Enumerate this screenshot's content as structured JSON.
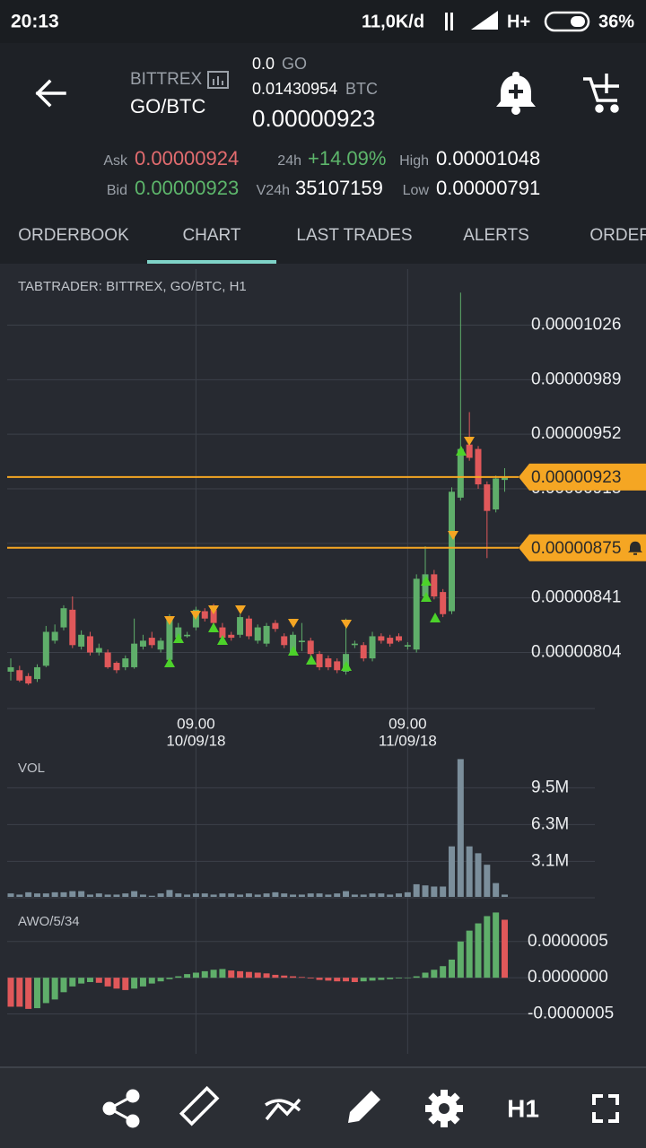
{
  "status_bar": {
    "time": "20:13",
    "speed": "11,0K/d",
    "network": "H+",
    "battery": "36%"
  },
  "header": {
    "exchange": "BITTREX",
    "pair": "GO/BTC",
    "holding_amount": "0.0",
    "holding_unit": "GO",
    "btc_value": "0.01430954",
    "btc_unit": "BTC",
    "last_price": "0.00000923",
    "ask_label": "Ask",
    "ask": "0.00000924",
    "bid_label": "Bid",
    "bid": "0.00000923",
    "change_label": "24h",
    "change": "+14.09%",
    "volume_label": "V24h",
    "volume": "35107159",
    "high_label": "High",
    "high": "0.00001048",
    "low_label": "Low",
    "low": "0.00000791"
  },
  "tabs": [
    "ORDERBOOK",
    "CHART",
    "LAST TRADES",
    "ALERTS",
    "ORDERS"
  ],
  "active_tab": 1,
  "chart": {
    "type": "candlestick",
    "title": "TABTRADER: BITTREX, GO/BTC, H1",
    "up_color": "#5fae6a",
    "down_color": "#e0585a",
    "categories": [
      null,
      null,
      null,
      null,
      null,
      null,
      null,
      null,
      null,
      null,
      null,
      null,
      null,
      null,
      null,
      null,
      null,
      null,
      null,
      null,
      null,
      {
        "time": "09.00",
        "date": "10/09/18"
      },
      null,
      null,
      null,
      null,
      null,
      null,
      null,
      null,
      null,
      null,
      null,
      null,
      null,
      null,
      null,
      null,
      null,
      null,
      null,
      null,
      null,
      null,
      null,
      {
        "time": "09.00",
        "date": "11/09/18"
      },
      null,
      null,
      null,
      null,
      null,
      null,
      null,
      null,
      null,
      null,
      null
    ],
    "open": [
      7.91e-06,
      7.92e-06,
      7.88e-06,
      7.86e-06,
      7.95e-06,
      8.12e-06,
      8.21e-06,
      8.33e-06,
      8.08e-06,
      8.15e-06,
      8.04e-06,
      8.04e-06,
      7.97e-06,
      7.94e-06,
      7.94e-06,
      8.08e-06,
      8.14e-06,
      8.06e-06,
      7.99e-06,
      8.14e-06,
      8.15e-06,
      8.21e-06,
      8.32e-06,
      8.33e-06,
      8.21e-06,
      8.16e-06,
      8.16e-06,
      8.27e-06,
      8.12e-06,
      8.1e-06,
      8.24e-06,
      8.15e-06,
      8.04e-06,
      8.11e-06,
      8.12e-06,
      8.03e-06,
      8e-06,
      7.98e-06,
      7.91e-06,
      8.09e-06,
      8.09e-06,
      8e-06,
      8.15e-06,
      8.14e-06,
      8.15e-06,
      8.08e-06,
      8.06e-06,
      8.42e-06,
      8.57e-06,
      8.45e-06,
      8.32e-06,
      9.09e-06,
      9.45e-06,
      9.42e-06,
      9.18e-06,
      9.01e-06,
      9.21e-06
    ],
    "high": [
      8e-06,
      7.95e-06,
      7.9e-06,
      7.96e-06,
      8.22e-06,
      8.23e-06,
      8.36e-06,
      8.42e-06,
      8.19e-06,
      8.18e-06,
      8.1e-06,
      8.06e-06,
      7.98e-06,
      8.02e-06,
      8.27e-06,
      8.16e-06,
      8.18e-06,
      8.14e-06,
      8.3e-06,
      8.24e-06,
      8.18e-06,
      8.35e-06,
      8.34e-06,
      8.37e-06,
      8.24e-06,
      8.18e-06,
      8.3e-06,
      8.29e-06,
      8.23e-06,
      8.24e-06,
      8.26e-06,
      8.17e-06,
      8.18e-06,
      8.24e-06,
      8.14e-06,
      8.05e-06,
      8.02e-06,
      8e-06,
      8.27e-06,
      8.12e-06,
      8.11e-06,
      8.18e-06,
      8.17e-06,
      8.16e-06,
      8.17e-06,
      8.11e-06,
      8.57e-06,
      8.76e-06,
      8.6e-06,
      8.47e-06,
      9.16e-06,
      1.048e-05,
      9.67e-06,
      9.44e-06,
      9.2e-06,
      9.24e-06,
      9.29e-06
    ],
    "low": [
      7.85e-06,
      7.84e-06,
      7.82e-06,
      7.84e-06,
      7.94e-06,
      8.1e-06,
      8.19e-06,
      8.07e-06,
      8.06e-06,
      8.02e-06,
      8.02e-06,
      7.93e-06,
      7.9e-06,
      7.92e-06,
      7.93e-06,
      8.06e-06,
      8.07e-06,
      8.04e-06,
      7.97e-06,
      8.12e-06,
      8.14e-06,
      8.19e-06,
      8.25e-06,
      8.22e-06,
      8.12e-06,
      8.12e-06,
      8.14e-06,
      8.13e-06,
      8.1e-06,
      8.08e-06,
      8.18e-06,
      8.07e-06,
      8.02e-06,
      8.05e-06,
      8.01e-06,
      7.92e-06,
      7.92e-06,
      7.9e-06,
      7.89e-06,
      8.07e-06,
      7.98e-06,
      7.98e-06,
      8.1e-06,
      8.08e-06,
      8.11e-06,
      8.06e-06,
      8.04e-06,
      8.4e-06,
      8.4e-06,
      8.28e-06,
      8.3e-06,
      9.07e-06,
      9.34e-06,
      9.15e-06,
      8.68e-06,
      8.99e-06,
      9.13e-06
    ],
    "close": [
      7.94e-06,
      7.85e-06,
      7.83e-06,
      7.94e-06,
      8.18e-06,
      8.18e-06,
      8.34e-06,
      8.09e-06,
      8.16e-06,
      8.04e-06,
      8.07e-06,
      7.94e-06,
      7.92e-06,
      8e-06,
      8.1e-06,
      8.12e-06,
      8.09e-06,
      8.12e-06,
      8.27e-06,
      8.21e-06,
      8.16e-06,
      8.33e-06,
      8.27e-06,
      8.24e-06,
      8.14e-06,
      8.14e-06,
      8.28e-06,
      8.15e-06,
      8.21e-06,
      8.22e-06,
      8.2e-06,
      8.09e-06,
      8.16e-06,
      8.12e-06,
      8.03e-06,
      7.94e-06,
      7.94e-06,
      7.92e-06,
      8.03e-06,
      8.1e-06,
      8e-06,
      8.15e-06,
      8.12e-06,
      8.1e-06,
      8.12e-06,
      8.09e-06,
      8.54e-06,
      8.57e-06,
      8.42e-06,
      8.3e-06,
      9.13e-06,
      9.42e-06,
      9.36e-06,
      9.18e-06,
      9e-06,
      9.22e-06,
      9.23e-06
    ],
    "ylim": [
      7.66e-06,
      1.064e-05
    ],
    "yticks": [
      1.026e-05,
      9.89e-06,
      9.52e-06,
      9.15e-06,
      8.78e-06,
      8.41e-06,
      8.04e-06
    ],
    "price_lines": [
      {
        "value": 9.23e-06,
        "color": "#f5a623",
        "alert": false
      },
      {
        "value": 8.75e-06,
        "color": "#f5a623",
        "alert": true
      }
    ]
  },
  "volume": {
    "type": "bar",
    "title": "VOL",
    "color": "#7b8e9b",
    "values": [
      300000,
      200000,
      400000,
      300000,
      300000,
      400000,
      400000,
      500000,
      500000,
      200000,
      300000,
      200000,
      200000,
      300000,
      500000,
      200000,
      100000,
      300000,
      600000,
      300000,
      200000,
      300000,
      300000,
      200000,
      300000,
      300000,
      200000,
      300000,
      200000,
      300000,
      400000,
      300000,
      200000,
      200000,
      300000,
      300000,
      200000,
      300000,
      500000,
      200000,
      200000,
      300000,
      300000,
      200000,
      300000,
      400000,
      1100000,
      1000000,
      900000,
      900000,
      4400000,
      12000000,
      4400000,
      3800000,
      2800000,
      1200000,
      200000
    ],
    "ylim": [
      0,
      12500000
    ],
    "yticks": [
      {
        "value": 9500000,
        "label": "9.5M"
      },
      {
        "value": 6300000,
        "label": "6.3M"
      },
      {
        "value": 3100000,
        "label": "3.1M"
      }
    ]
  },
  "oscillator": {
    "type": "bar",
    "title": "AWO/5/34",
    "up_color": "#5fae6a",
    "down_color": "#e0585a",
    "values": [
      -4e-07,
      -4e-07,
      -4.3e-07,
      -4.2e-07,
      -3.5e-07,
      -3e-07,
      -2e-07,
      -1.2e-07,
      -8e-08,
      -6e-08,
      -7e-08,
      -1.2e-07,
      -1.5e-07,
      -1.7e-07,
      -1.5e-07,
      -1.2e-07,
      -8e-08,
      -5e-08,
      -2e-08,
      2e-08,
      5e-08,
      7e-08,
      9e-08,
      1.1e-07,
      1.2e-07,
      1e-07,
      9e-08,
      8e-08,
      7e-08,
      6e-08,
      4e-08,
      3e-08,
      2e-08,
      1e-08,
      -1e-08,
      -3e-08,
      -4e-08,
      -5e-08,
      -5e-08,
      -6e-08,
      -5e-08,
      -4e-08,
      -3e-08,
      -2e-08,
      -1e-08,
      -5e-09,
      2e-08,
      7e-08,
      1.1e-07,
      1.6e-07,
      2.5e-07,
      5e-07,
      6.5e-07,
      7.5e-07,
      8.5e-07,
      9e-07,
      8e-07
    ],
    "ylim": [
      -1.05e-06,
      9.3e-07
    ],
    "yticks": [
      {
        "value": 5e-07,
        "label": "0.0000005"
      },
      {
        "value": 0,
        "label": "0.0000000"
      },
      {
        "value": -5e-07,
        "label": "-0.0000005"
      }
    ]
  },
  "toolbar": {
    "timeframe": "H1"
  }
}
